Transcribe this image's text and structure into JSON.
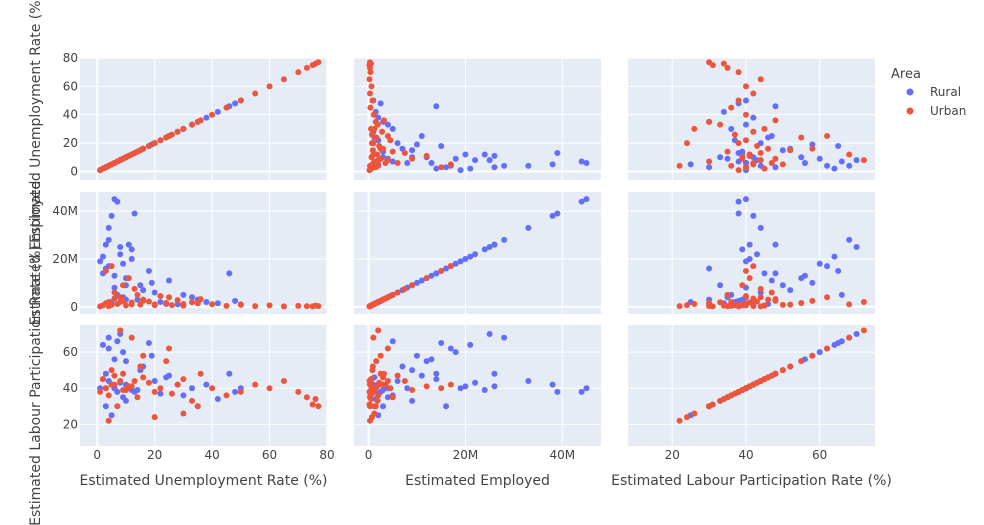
{
  "chart_data": {
    "type": "scatter",
    "subtype": "scatter-matrix",
    "variables": [
      {
        "label": "Estimated Unemployment Rate (%)",
        "range": [
          -6,
          80
        ],
        "ticks": [
          0,
          20,
          40,
          60,
          80
        ],
        "tick_labels": [
          "0",
          "20",
          "40",
          "60",
          "80"
        ]
      },
      {
        "label": "Estimated Employed",
        "range": [
          -3000000,
          48000000
        ],
        "ticks": [
          0,
          20000000,
          40000000
        ],
        "tick_labels": [
          "0",
          "20M",
          "40M"
        ]
      },
      {
        "label": "Estimated Labour Participation Rate (%)",
        "range": [
          8,
          75
        ],
        "ticks": [
          20,
          40,
          60
        ],
        "tick_labels": [
          "20",
          "40",
          "60"
        ]
      }
    ],
    "xaxis_titles": [
      "Estimated Unemployment Rate (%)",
      "Estimated Employed",
      "Estimated Labour Participation Rate (%)"
    ],
    "yaxis_titles": [
      "Estimated Unemployment Rate (%)",
      "Estimated Employed",
      "Estimated Labour Participation Rate (%)"
    ],
    "legend": {
      "title": "Area",
      "placement": "top-right"
    },
    "grid": true,
    "series": [
      {
        "name": "Rural",
        "color": "#636efa",
        "points": [
          [
            2,
            14000000,
            45
          ],
          [
            3,
            26000000,
            48
          ],
          [
            4,
            17000000,
            62
          ],
          [
            5,
            38000000,
            42
          ],
          [
            6,
            8000000,
            40
          ],
          [
            7,
            44000000,
            38
          ],
          [
            8,
            25000000,
            70
          ],
          [
            9,
            4000000,
            35
          ],
          [
            10,
            12000000,
            55
          ],
          [
            12,
            20000000,
            41
          ],
          [
            14,
            3000000,
            39
          ],
          [
            15,
            9000000,
            50
          ],
          [
            18,
            15000000,
            65
          ],
          [
            20,
            6000000,
            44
          ],
          [
            22,
            2000000,
            37
          ],
          [
            25,
            11000000,
            47
          ],
          [
            28,
            1000000,
            42
          ],
          [
            30,
            5000000,
            36
          ],
          [
            33,
            4000000,
            40
          ],
          [
            35,
            3000000,
            30
          ],
          [
            38,
            2000000,
            42
          ],
          [
            42,
            1500000,
            34
          ],
          [
            46,
            14000000,
            48
          ],
          [
            48,
            2500000,
            38
          ],
          [
            50,
            1000000,
            40
          ],
          [
            8,
            22000000,
            43
          ],
          [
            11,
            26000000,
            41
          ],
          [
            6,
            45000000,
            40
          ],
          [
            13,
            39000000,
            38
          ],
          [
            4,
            33000000,
            44
          ],
          [
            9,
            18000000,
            60
          ],
          [
            16,
            7000000,
            52
          ],
          [
            7,
            5000000,
            66
          ],
          [
            3,
            16000000,
            30
          ],
          [
            19,
            10000000,
            58
          ],
          [
            24,
            1200000,
            46
          ],
          [
            5,
            2000000,
            25
          ],
          [
            10,
            3000000,
            42
          ],
          [
            1,
            19000000,
            40
          ],
          [
            12,
            24000000,
            39
          ],
          [
            4,
            28000000,
            68
          ],
          [
            2,
            21000000,
            64
          ],
          [
            6,
            13000000,
            56
          ],
          [
            10,
            9000000,
            33
          ]
        ]
      },
      {
        "name": "Urban",
        "color": "#ef553b",
        "points": [
          [
            1,
            200000,
            38
          ],
          [
            2,
            600000,
            45
          ],
          [
            3,
            1500000,
            40
          ],
          [
            4,
            2000000,
            36
          ],
          [
            5,
            800000,
            50
          ],
          [
            6,
            3500000,
            42
          ],
          [
            7,
            1200000,
            30
          ],
          [
            8,
            4000000,
            44
          ],
          [
            9,
            2500000,
            48
          ],
          [
            10,
            600000,
            39
          ],
          [
            12,
            1800000,
            41
          ],
          [
            14,
            5000000,
            35
          ],
          [
            15,
            900000,
            52
          ],
          [
            16,
            3000000,
            46
          ],
          [
            18,
            2200000,
            43
          ],
          [
            20,
            1000000,
            38
          ],
          [
            22,
            4500000,
            40
          ],
          [
            24,
            1600000,
            55
          ],
          [
            26,
            700000,
            37
          ],
          [
            28,
            2800000,
            42
          ],
          [
            30,
            500000,
            45
          ],
          [
            33,
            1900000,
            33
          ],
          [
            36,
            3200000,
            48
          ],
          [
            40,
            1100000,
            40
          ],
          [
            45,
            400000,
            36
          ],
          [
            50,
            800000,
            38
          ],
          [
            55,
            300000,
            42
          ],
          [
            60,
            600000,
            40
          ],
          [
            65,
            200000,
            44
          ],
          [
            70,
            400000,
            38
          ],
          [
            73,
            300000,
            35
          ],
          [
            75,
            200000,
            31
          ],
          [
            76,
            500000,
            34
          ],
          [
            77,
            300000,
            30
          ],
          [
            5,
            17000000,
            42
          ],
          [
            9,
            9000000,
            39
          ],
          [
            6,
            6000000,
            47
          ],
          [
            11,
            12000000,
            41
          ],
          [
            13,
            7500000,
            44
          ],
          [
            3,
            15000000,
            40
          ],
          [
            8,
            2000000,
            72
          ],
          [
            12,
            1000000,
            68
          ],
          [
            20,
            700000,
            24
          ],
          [
            4,
            300000,
            22
          ],
          [
            30,
            1200000,
            26
          ],
          [
            16,
            2500000,
            58
          ],
          [
            25,
            4000000,
            62
          ],
          [
            35,
            1500000,
            30
          ]
        ]
      }
    ]
  }
}
